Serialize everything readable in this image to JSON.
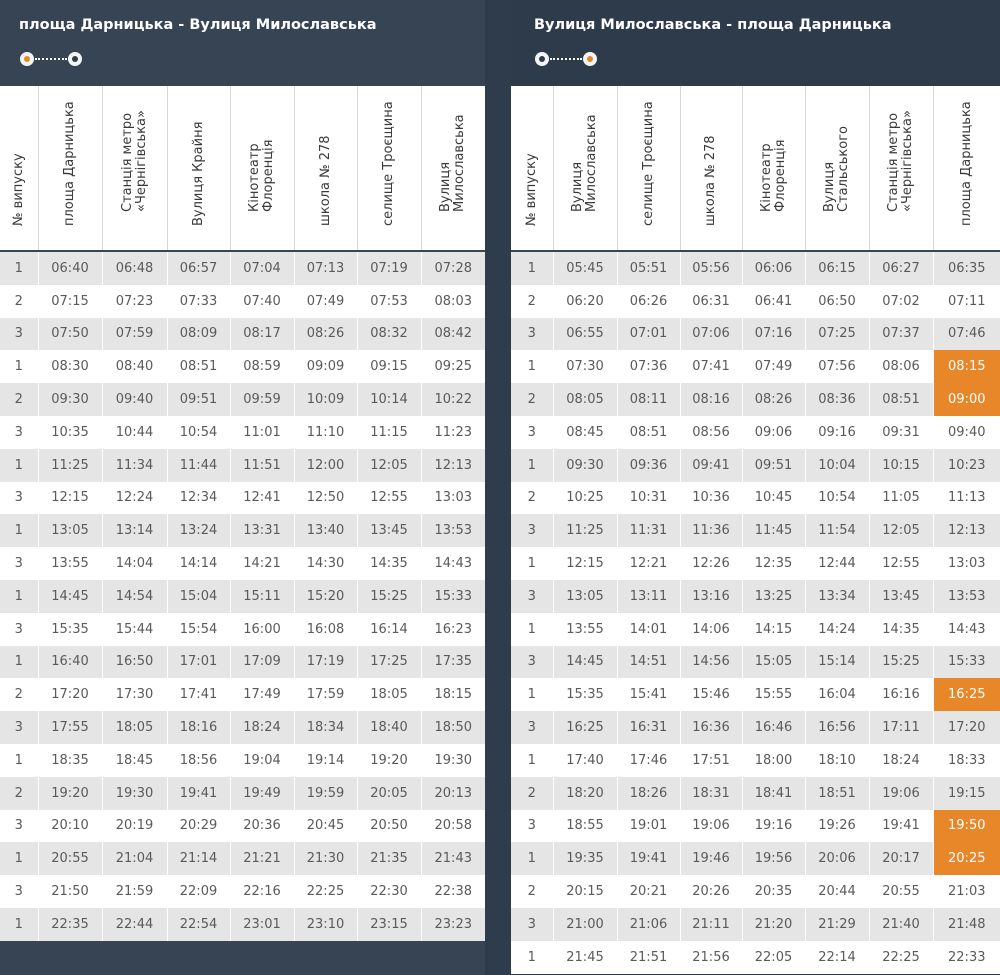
{
  "left": {
    "title": "площа Дарницька - Вулиця Милославська",
    "headers": [
      "№ випуску",
      "площа Дарницька",
      "Станція метро\n«Чернігівська»",
      "Вулиця Крайня",
      "Кінотеатр\nФлоренція",
      "школа № 278",
      "селище Троєщина",
      "Вулиця\nМилославська"
    ],
    "rows": [
      [
        "1",
        "06:40",
        "06:48",
        "06:57",
        "07:04",
        "07:13",
        "07:19",
        "07:28"
      ],
      [
        "2",
        "07:15",
        "07:23",
        "07:33",
        "07:40",
        "07:49",
        "07:53",
        "08:03"
      ],
      [
        "3",
        "07:50",
        "07:59",
        "08:09",
        "08:17",
        "08:26",
        "08:32",
        "08:42"
      ],
      [
        "1",
        "08:30",
        "08:40",
        "08:51",
        "08:59",
        "09:09",
        "09:15",
        "09:25"
      ],
      [
        "2",
        "09:30",
        "09:40",
        "09:51",
        "09:59",
        "10:09",
        "10:14",
        "10:22"
      ],
      [
        "3",
        "10:35",
        "10:44",
        "10:54",
        "11:01",
        "11:10",
        "11:15",
        "11:23"
      ],
      [
        "1",
        "11:25",
        "11:34",
        "11:44",
        "11:51",
        "12:00",
        "12:05",
        "12:13"
      ],
      [
        "3",
        "12:15",
        "12:24",
        "12:34",
        "12:41",
        "12:50",
        "12:55",
        "13:03"
      ],
      [
        "1",
        "13:05",
        "13:14",
        "13:24",
        "13:31",
        "13:40",
        "13:45",
        "13:53"
      ],
      [
        "3",
        "13:55",
        "14:04",
        "14:14",
        "14:21",
        "14:30",
        "14:35",
        "14:43"
      ],
      [
        "1",
        "14:45",
        "14:54",
        "15:04",
        "15:11",
        "15:20",
        "15:25",
        "15:33"
      ],
      [
        "3",
        "15:35",
        "15:44",
        "15:54",
        "16:00",
        "16:08",
        "16:14",
        "16:23"
      ],
      [
        "1",
        "16:40",
        "16:50",
        "17:01",
        "17:09",
        "17:19",
        "17:25",
        "17:35"
      ],
      [
        "2",
        "17:20",
        "17:30",
        "17:41",
        "17:49",
        "17:59",
        "18:05",
        "18:15"
      ],
      [
        "3",
        "17:55",
        "18:05",
        "18:16",
        "18:24",
        "18:34",
        "18:40",
        "18:50"
      ],
      [
        "1",
        "18:35",
        "18:45",
        "18:56",
        "19:04",
        "19:14",
        "19:20",
        "19:30"
      ],
      [
        "2",
        "19:20",
        "19:30",
        "19:41",
        "19:49",
        "19:59",
        "20:05",
        "20:13"
      ],
      [
        "3",
        "20:10",
        "20:19",
        "20:29",
        "20:36",
        "20:45",
        "20:50",
        "20:58"
      ],
      [
        "1",
        "20:55",
        "21:04",
        "21:14",
        "21:21",
        "21:30",
        "21:35",
        "21:43"
      ],
      [
        "3",
        "21:50",
        "21:59",
        "22:09",
        "22:16",
        "22:25",
        "22:30",
        "22:38"
      ],
      [
        "1",
        "22:35",
        "22:44",
        "22:54",
        "23:01",
        "23:10",
        "23:15",
        "23:23"
      ]
    ],
    "highlighted": []
  },
  "right": {
    "title": "Вулиця Милославська - площа Дарницька",
    "headers": [
      "№ випуску",
      "Вулиця\nМилославська",
      "селище Троєщина",
      "школа № 278",
      "Кінотеатр\nФлоренція",
      "Вулиця\nСтальського",
      "Станція метро\n«Чернігівська»",
      "площа Дарницька"
    ],
    "rows": [
      [
        "1",
        "05:45",
        "05:51",
        "05:56",
        "06:06",
        "06:15",
        "06:27",
        "06:35"
      ],
      [
        "2",
        "06:20",
        "06:26",
        "06:31",
        "06:41",
        "06:50",
        "07:02",
        "07:11"
      ],
      [
        "3",
        "06:55",
        "07:01",
        "07:06",
        "07:16",
        "07:25",
        "07:37",
        "07:46"
      ],
      [
        "1",
        "07:30",
        "07:36",
        "07:41",
        "07:49",
        "07:56",
        "08:06",
        "08:15"
      ],
      [
        "2",
        "08:05",
        "08:11",
        "08:16",
        "08:26",
        "08:36",
        "08:51",
        "09:00"
      ],
      [
        "3",
        "08:45",
        "08:51",
        "08:56",
        "09:06",
        "09:16",
        "09:31",
        "09:40"
      ],
      [
        "1",
        "09:30",
        "09:36",
        "09:41",
        "09:51",
        "10:04",
        "10:15",
        "10:23"
      ],
      [
        "2",
        "10:25",
        "10:31",
        "10:36",
        "10:45",
        "10:54",
        "11:05",
        "11:13"
      ],
      [
        "3",
        "11:25",
        "11:31",
        "11:36",
        "11:45",
        "11:54",
        "12:05",
        "12:13"
      ],
      [
        "1",
        "12:15",
        "12:21",
        "12:26",
        "12:35",
        "12:44",
        "12:55",
        "13:03"
      ],
      [
        "3",
        "13:05",
        "13:11",
        "13:16",
        "13:25",
        "13:34",
        "13:45",
        "13:53"
      ],
      [
        "1",
        "13:55",
        "14:01",
        "14:06",
        "14:15",
        "14:24",
        "14:35",
        "14:43"
      ],
      [
        "3",
        "14:45",
        "14:51",
        "14:56",
        "15:05",
        "15:14",
        "15:25",
        "15:33"
      ],
      [
        "1",
        "15:35",
        "15:41",
        "15:46",
        "15:55",
        "16:04",
        "16:16",
        "16:25"
      ],
      [
        "3",
        "16:25",
        "16:31",
        "16:36",
        "16:46",
        "16:56",
        "17:11",
        "17:20"
      ],
      [
        "1",
        "17:40",
        "17:46",
        "17:51",
        "18:00",
        "18:10",
        "18:24",
        "18:33"
      ],
      [
        "2",
        "18:20",
        "18:26",
        "18:31",
        "18:41",
        "18:51",
        "19:06",
        "19:15"
      ],
      [
        "3",
        "18:55",
        "19:01",
        "19:06",
        "19:16",
        "19:26",
        "19:41",
        "19:50"
      ],
      [
        "1",
        "19:35",
        "19:41",
        "19:46",
        "19:56",
        "20:06",
        "20:17",
        "20:25"
      ],
      [
        "2",
        "20:15",
        "20:21",
        "20:26",
        "20:35",
        "20:44",
        "20:55",
        "21:03"
      ],
      [
        "3",
        "21:00",
        "21:06",
        "21:11",
        "21:20",
        "21:29",
        "21:40",
        "21:48"
      ],
      [
        "1",
        "21:45",
        "21:51",
        "21:56",
        "22:05",
        "22:14",
        "22:25",
        "22:33"
      ]
    ],
    "highlighted": [
      "08:15",
      "09:00",
      "16:25",
      "19:50",
      "20:25"
    ]
  },
  "colors": {
    "accent": "#e8872a",
    "header_bg": "#364454",
    "row_alt": "#e5e5e5"
  },
  "icons": {
    "route_start": "origin-dot-icon",
    "route_end": "destination-dot-icon"
  }
}
